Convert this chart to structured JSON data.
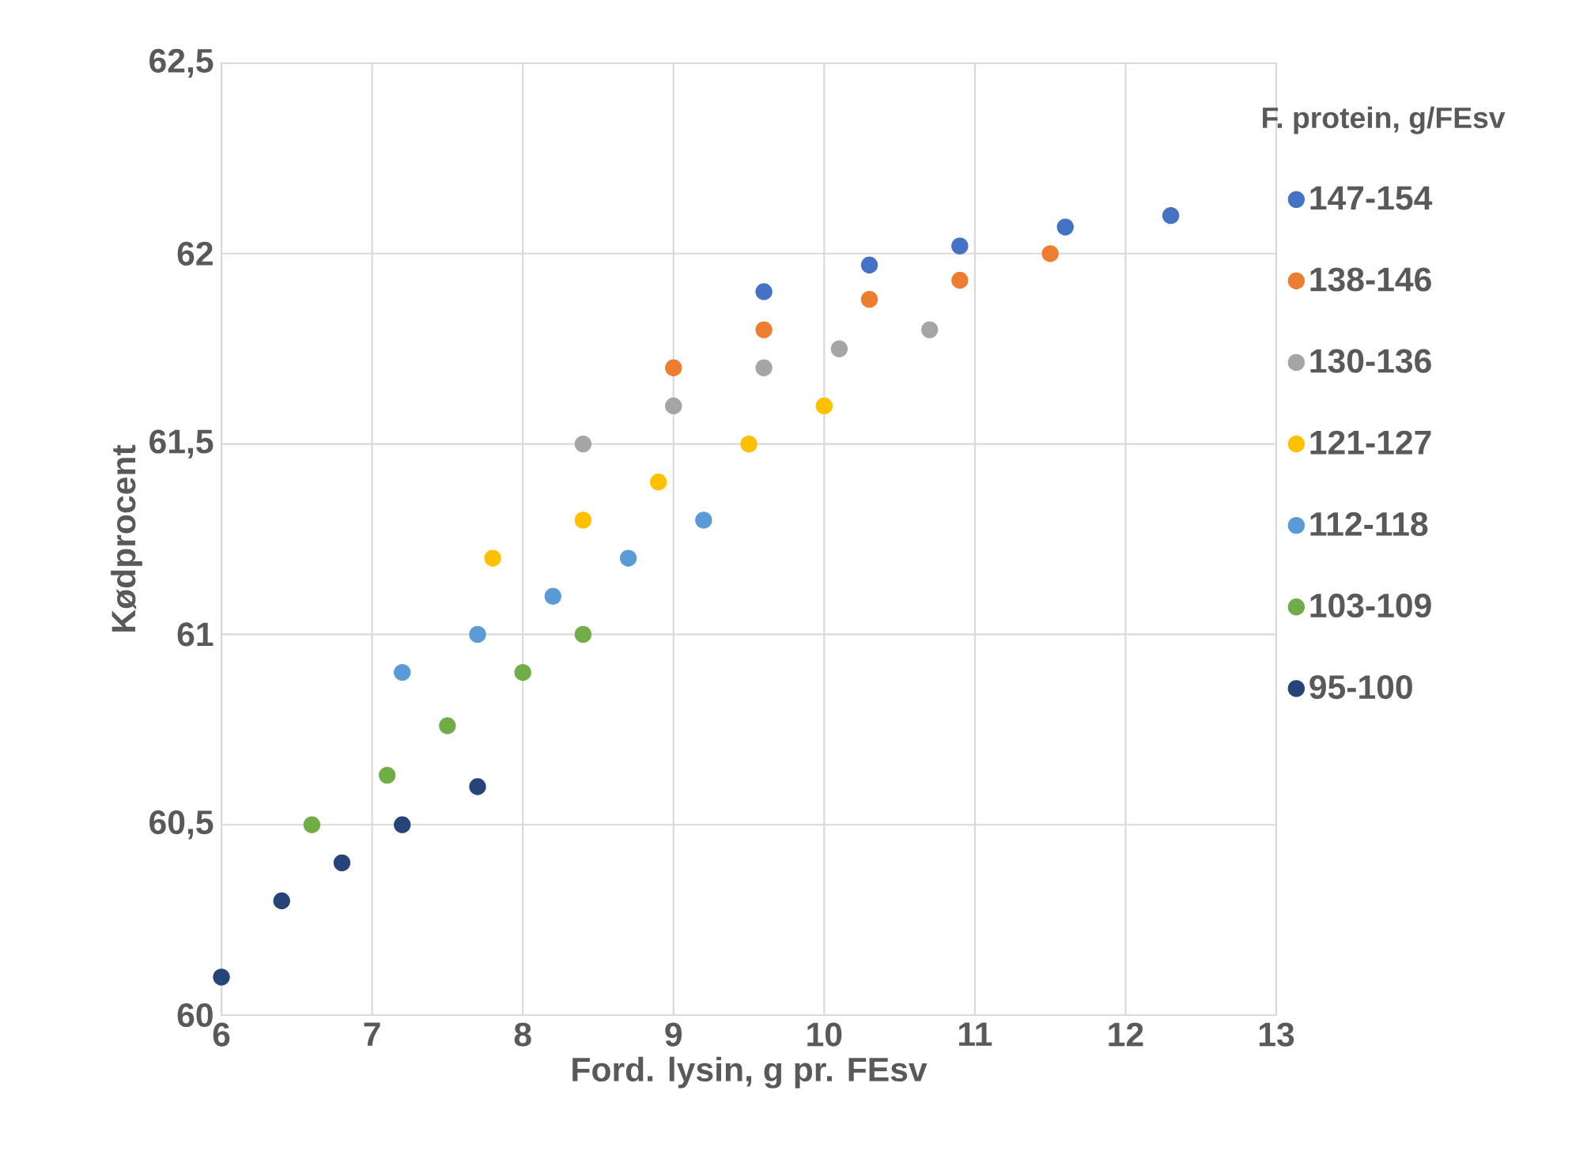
{
  "chart_data": {
    "type": "scatter",
    "xlabel": "Ford. lysin, g pr. FEsv",
    "ylabel": "Kødprocent",
    "legend_title": "F. protein, g/FEsv",
    "legend": "right",
    "grid": true,
    "marker": "circle",
    "xlim": [
      6,
      13
    ],
    "xticks": [
      6,
      7,
      8,
      9,
      10,
      11,
      12,
      13
    ],
    "ylim": [
      60,
      62.5
    ],
    "yticks": [
      {
        "value": 60,
        "label": "60"
      },
      {
        "value": 60.5,
        "label": "60,5"
      },
      {
        "value": 61,
        "label": "61"
      },
      {
        "value": 61.5,
        "label": "61,5"
      },
      {
        "value": 62,
        "label": "62"
      },
      {
        "value": 62.5,
        "label": "62,5"
      }
    ],
    "series": [
      {
        "name": "147-154",
        "color": "#4472c4",
        "x": [
          9.6,
          10.3,
          10.9,
          11.6,
          12.3
        ],
        "values": [
          61.9,
          61.97,
          62.02,
          62.07,
          62.1
        ]
      },
      {
        "name": "138-146",
        "color": "#ed7d31",
        "x": [
          9.0,
          9.6,
          10.3,
          10.9,
          11.5
        ],
        "values": [
          61.7,
          61.8,
          61.88,
          61.93,
          62.0
        ]
      },
      {
        "name": "130-136",
        "color": "#a5a5a5",
        "x": [
          8.4,
          9.0,
          9.6,
          10.1,
          10.7
        ],
        "values": [
          61.5,
          61.6,
          61.7,
          61.75,
          61.8
        ]
      },
      {
        "name": "121-127",
        "color": "#ffc000",
        "x": [
          7.8,
          8.4,
          8.9,
          9.5,
          10.0
        ],
        "values": [
          61.2,
          61.3,
          61.4,
          61.5,
          61.6
        ]
      },
      {
        "name": "112-118",
        "color": "#5b9bd5",
        "x": [
          7.2,
          7.7,
          8.2,
          8.7,
          9.2
        ],
        "values": [
          60.9,
          61.0,
          61.1,
          61.2,
          61.3
        ]
      },
      {
        "name": "103-109",
        "color": "#70ad47",
        "x": [
          6.6,
          7.1,
          7.5,
          8.0,
          8.4
        ],
        "values": [
          60.5,
          60.63,
          60.76,
          60.9,
          61.0
        ]
      },
      {
        "name": "95-100",
        "color": "#264478",
        "x": [
          6.0,
          6.4,
          6.8,
          7.2,
          7.7
        ],
        "values": [
          60.1,
          60.3,
          60.4,
          60.5,
          60.6
        ]
      }
    ]
  }
}
